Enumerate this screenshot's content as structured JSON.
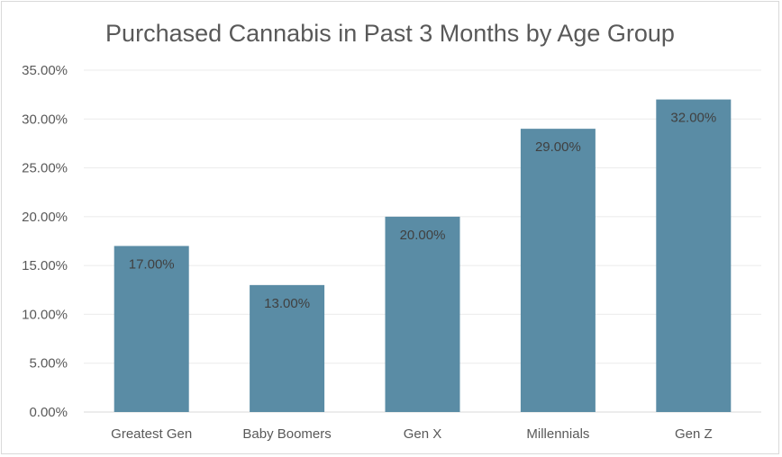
{
  "chart_data": {
    "type": "bar",
    "title": "Purchased Cannabis in Past 3 Months by Age Group",
    "categories": [
      "Greatest Gen",
      "Baby Boomers",
      "Gen X",
      "Millennials",
      "Gen Z"
    ],
    "values": [
      17,
      13,
      20,
      29,
      32
    ],
    "data_labels": [
      "17.00%",
      "13.00%",
      "20.00%",
      "29.00%",
      "32.00%"
    ],
    "yticks": [
      "0.00%",
      "5.00%",
      "10.00%",
      "15.00%",
      "20.00%",
      "25.00%",
      "30.00%",
      "35.00%"
    ],
    "ylim": [
      0,
      35
    ],
    "xlabel": "",
    "ylabel": "",
    "grid": true,
    "legend": "none",
    "colors": {
      "bar": "#5a8ca5",
      "grid": "#ebebeb",
      "text": "#595959"
    }
  }
}
